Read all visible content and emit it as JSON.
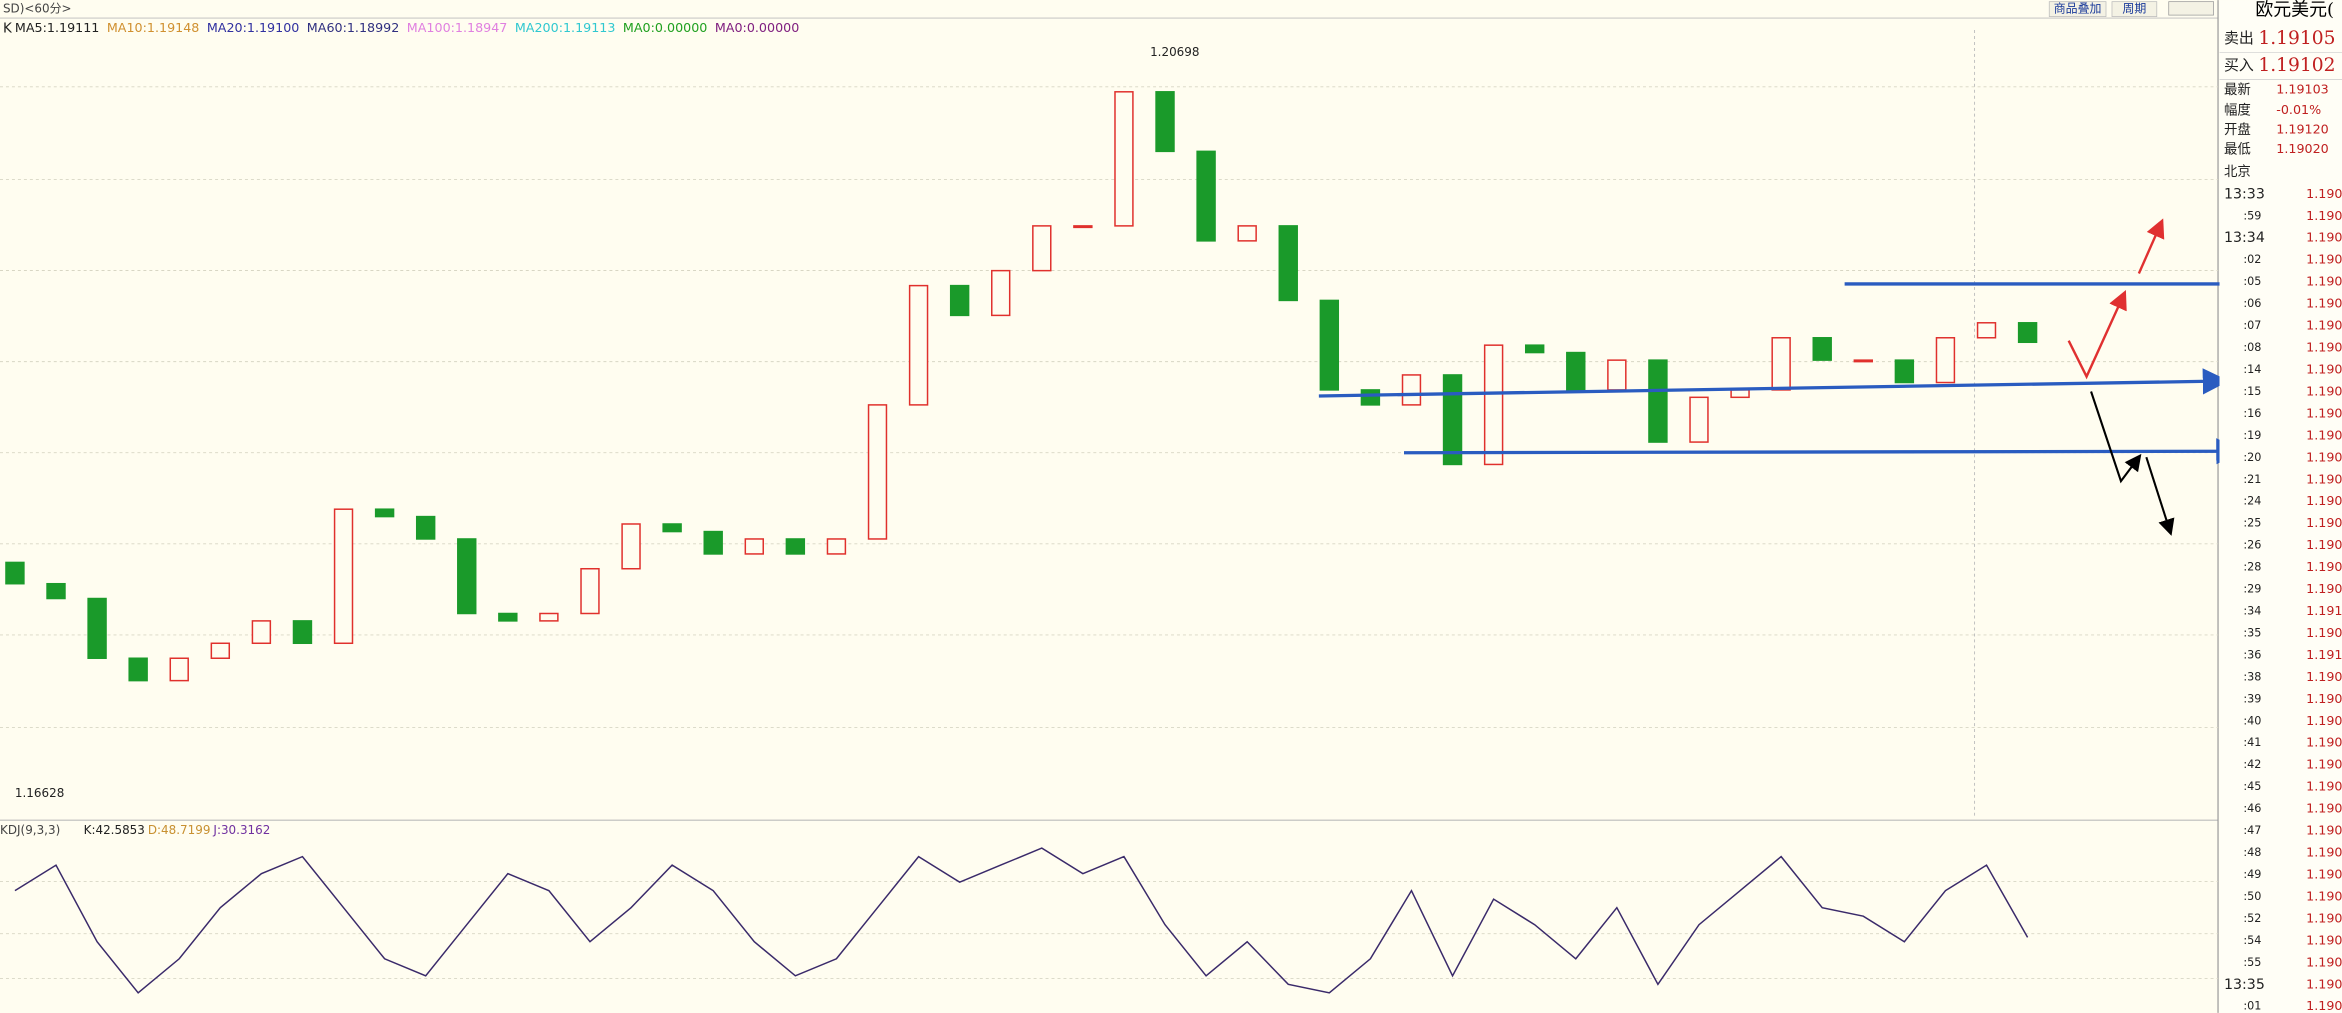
{
  "header": {
    "title": "SD)<60分>",
    "buttons": [
      "商品叠加",
      "周期"
    ]
  },
  "legend": {
    "label": "K",
    "items": [
      {
        "text": "MA5:1.19111",
        "color": "#222222"
      },
      {
        "text": "MA10:1.19148",
        "color": "#d09030"
      },
      {
        "text": "MA20:1.19100",
        "color": "#3030a0"
      },
      {
        "text": "MA60:1.18992",
        "color": "#303080"
      },
      {
        "text": "MA100:1.18947",
        "color": "#e080e0"
      },
      {
        "text": "MA200:1.19113",
        "color": "#30c8d0"
      },
      {
        "text": "MA0:0.00000",
        "color": "#20a020"
      },
      {
        "text": "MA0:0.00000",
        "color": "#802080"
      }
    ]
  },
  "chart_data": {
    "type": "candlestick",
    "open": [
      1.179,
      1.17782,
      1.177,
      1.17369,
      1.17245,
      1.17369,
      1.17452,
      1.17576,
      1.17452,
      1.18195,
      1.18154,
      1.1803,
      1.17617,
      1.17576,
      1.17617,
      1.17865,
      1.18113,
      1.18071,
      1.17947,
      1.1803,
      1.17947,
      1.1803,
      1.18773,
      1.19434,
      1.19269,
      1.19517,
      1.19765,
      1.19765,
      1.20508,
      1.20178,
      1.19682,
      1.19765,
      1.19352,
      1.18856,
      1.18773,
      1.18939,
      1.18443,
      1.19104,
      1.19063,
      1.18856,
      1.19021,
      1.18567,
      1.18815,
      1.18856,
      1.19145,
      1.19021,
      1.19021,
      1.18897,
      1.19145,
      1.19228
    ],
    "close": [
      1.17782,
      1.177,
      1.17369,
      1.17245,
      1.17369,
      1.17452,
      1.17576,
      1.17452,
      1.18195,
      1.18154,
      1.1803,
      1.17617,
      1.17576,
      1.17617,
      1.17865,
      1.18113,
      1.18071,
      1.17947,
      1.1803,
      1.17947,
      1.1803,
      1.18773,
      1.19434,
      1.19269,
      1.19517,
      1.19765,
      1.19765,
      1.20508,
      1.20178,
      1.19682,
      1.19765,
      1.19352,
      1.18856,
      1.18773,
      1.18939,
      1.18443,
      1.19104,
      1.19063,
      1.18856,
      1.19021,
      1.18567,
      1.18815,
      1.18856,
      1.19145,
      1.19021,
      1.19021,
      1.18897,
      1.19145,
      1.19228,
      1.1912
    ],
    "ylim": [
      1.1648,
      1.209
    ],
    "up_color": "#e0302c",
    "down_color": "#1a9a2a",
    "high_label": "1.20698",
    "low_label": "1.16628"
  },
  "indicator": {
    "title": "KDJ(9,3,3)",
    "items": [
      {
        "text": "K:42.5853",
        "color": "#222222"
      },
      {
        "text": "D:48.7199",
        "color": "#c89030"
      },
      {
        "text": "J:30.3162",
        "color": "#7030a0"
      }
    ],
    "chart_data": {
      "type": "line",
      "color": "#3a2a6a",
      "ylim": [
        0,
        100
      ],
      "values": [
        70,
        85,
        40,
        10,
        30,
        60,
        80,
        90,
        60,
        30,
        20,
        50,
        80,
        70,
        40,
        60,
        85,
        70,
        40,
        20,
        30,
        60,
        90,
        75,
        85,
        95,
        80,
        90,
        50,
        20,
        40,
        15,
        10,
        30,
        70,
        20,
        65,
        50,
        30,
        60,
        15,
        50,
        70,
        90,
        60,
        55,
        40,
        70,
        85,
        42.5853
      ]
    }
  },
  "quote": {
    "title": "欧元美元(",
    "rows": [
      [
        "卖出",
        "1.19105"
      ],
      [
        "买入",
        "1.19102"
      ],
      [
        "最新",
        "1.19103"
      ],
      [
        "幅度",
        "-0.01%"
      ],
      [
        "开盘",
        "1.19120"
      ],
      [
        "最低",
        "1.19020"
      ]
    ]
  },
  "ticks": {
    "header": "北京",
    "rows": [
      [
        "13:33",
        "1.190"
      ],
      [
        ":59",
        "1.190"
      ],
      [
        "13:34",
        "1.190"
      ],
      [
        ":02",
        "1.190"
      ],
      [
        ":05",
        "1.190"
      ],
      [
        ":06",
        "1.190"
      ],
      [
        ":07",
        "1.190"
      ],
      [
        ":08",
        "1.190"
      ],
      [
        ":14",
        "1.190"
      ],
      [
        ":15",
        "1.190"
      ],
      [
        ":16",
        "1.190"
      ],
      [
        ":19",
        "1.190"
      ],
      [
        ":20",
        "1.190"
      ],
      [
        ":21",
        "1.190"
      ],
      [
        ":24",
        "1.190"
      ],
      [
        ":25",
        "1.190"
      ],
      [
        ":26",
        "1.190"
      ],
      [
        ":28",
        "1.190"
      ],
      [
        ":29",
        "1.190"
      ],
      [
        ":34",
        "1.191"
      ],
      [
        ":35",
        "1.190"
      ],
      [
        ":36",
        "1.191"
      ],
      [
        ":38",
        "1.190"
      ],
      [
        ":39",
        "1.190"
      ],
      [
        ":40",
        "1.190"
      ],
      [
        ":41",
        "1.190"
      ],
      [
        ":42",
        "1.190"
      ],
      [
        ":45",
        "1.190"
      ],
      [
        ":46",
        "1.190"
      ],
      [
        ":47",
        "1.190"
      ],
      [
        ":48",
        "1.190"
      ],
      [
        ":49",
        "1.190"
      ],
      [
        ":50",
        "1.190"
      ],
      [
        ":52",
        "1.190"
      ],
      [
        ":54",
        "1.190"
      ],
      [
        ":55",
        "1.190"
      ],
      [
        "13:35",
        "1.190"
      ],
      [
        ":01",
        "1.190"
      ]
    ]
  }
}
